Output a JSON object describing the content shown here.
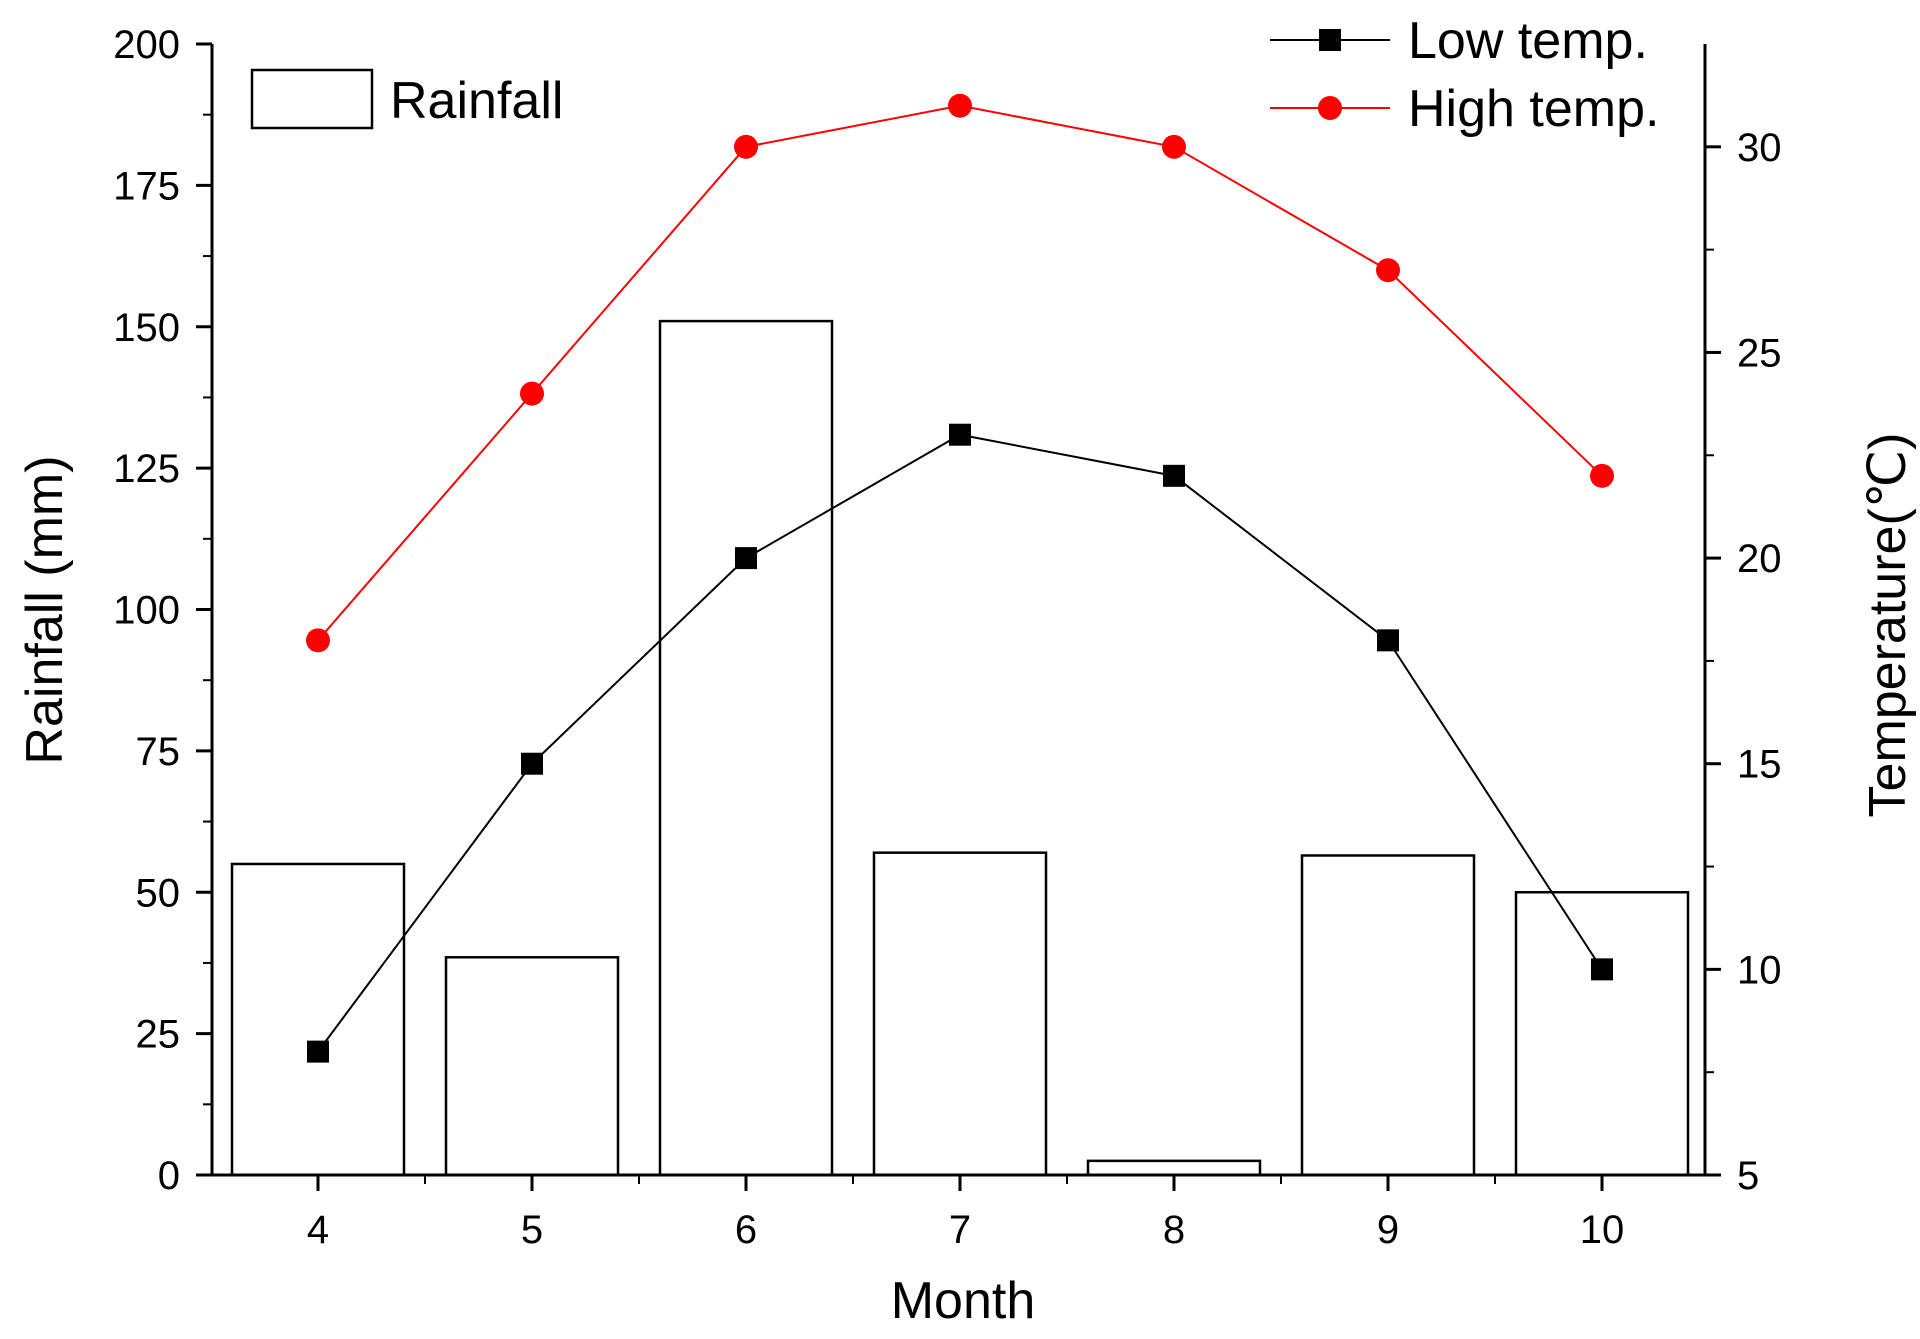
{
  "chart_data": {
    "type": "bar",
    "categories": [
      "4",
      "5",
      "6",
      "7",
      "8",
      "9",
      "10"
    ],
    "series": [
      {
        "name": "Rainfall",
        "kind": "bar",
        "axis": "left",
        "values": [
          55,
          38.5,
          151,
          57,
          2.5,
          56.5,
          50
        ]
      },
      {
        "name": "Low temp.",
        "kind": "line",
        "axis": "right",
        "marker": "square",
        "values": [
          8,
          15,
          20,
          23,
          22,
          18,
          10
        ]
      },
      {
        "name": "High temp.",
        "kind": "line",
        "axis": "right",
        "marker": "circle",
        "values": [
          18,
          24,
          30,
          31,
          30,
          27,
          22
        ]
      }
    ],
    "xlabel": "Month",
    "ylabel": "Rainfall (mm)",
    "y2label": "Temperature(℃)",
    "ylim": [
      0,
      200
    ],
    "yticks": [
      "0",
      "25",
      "50",
      "75",
      "100",
      "125",
      "150",
      "175",
      "200"
    ],
    "y2lim": [
      5,
      32.5
    ],
    "y2ticks": [
      "5",
      "10",
      "15",
      "20",
      "25",
      "30"
    ],
    "grid": false,
    "legend": [
      {
        "label": "Rainfall",
        "position": "top-left"
      },
      {
        "label": "Low temp.",
        "position": "top-right"
      },
      {
        "label": "High temp.",
        "position": "top-right"
      }
    ],
    "colors": {
      "rainfall_fill": "#ffffff",
      "rainfall_stroke": "#000000",
      "low_temp": "#000000",
      "high_temp": "#ff0000"
    }
  }
}
